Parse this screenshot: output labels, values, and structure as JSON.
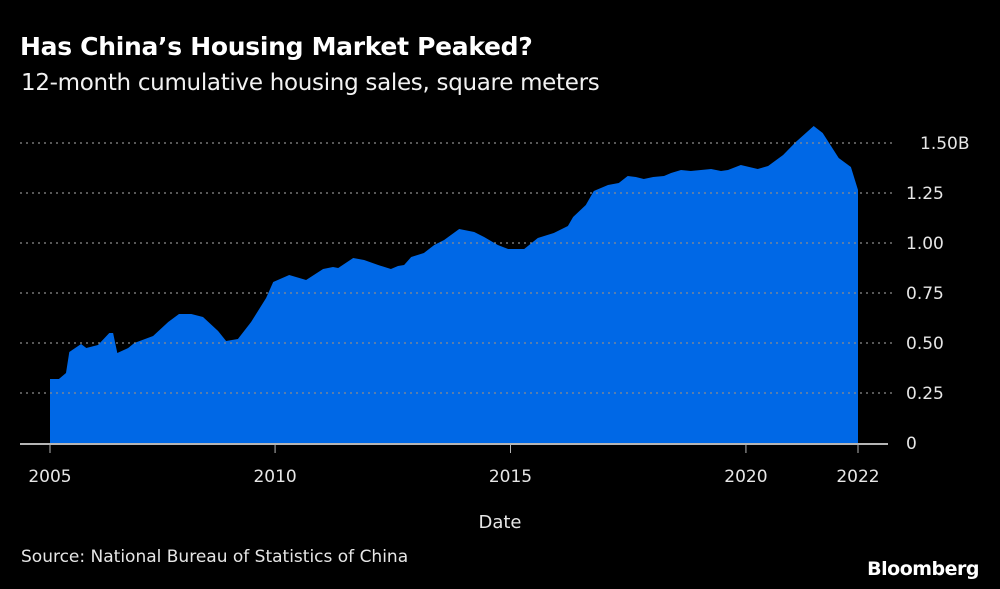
{
  "chart_data": {
    "type": "area",
    "title": "Has China’s Housing Market Peaked?",
    "subtitle": "12-month cumulative housing sales, square meters",
    "xlabel": "Date",
    "ylabel": "",
    "source": "Source: National Bureau of Statistics of China",
    "logo": "Bloomberg",
    "color": "#0068e6",
    "grid": true,
    "xlim": [
      2005.22,
      2022.38
    ],
    "ylim": [
      0,
      1.5
    ],
    "x_ticks": [
      {
        "value": 2005.22,
        "label": "2005"
      },
      {
        "value": 2010,
        "label": "2010"
      },
      {
        "value": 2015,
        "label": "2015"
      },
      {
        "value": 2020,
        "label": "2020"
      },
      {
        "value": 2022.38,
        "label": "2022"
      }
    ],
    "y_ticks": [
      {
        "value": 0,
        "label": "0"
      },
      {
        "value": 0.25,
        "label": "0.25"
      },
      {
        "value": 0.5,
        "label": "0.50"
      },
      {
        "value": 0.75,
        "label": "0.75"
      },
      {
        "value": 1.0,
        "label": "1.00"
      },
      {
        "value": 1.25,
        "label": "1.25"
      },
      {
        "value": 1.5,
        "label": "1.50B"
      }
    ],
    "points": [
      [
        2005.22,
        0.32
      ],
      [
        2005.41,
        0.32
      ],
      [
        2005.56,
        0.35
      ],
      [
        2005.63,
        0.455
      ],
      [
        2005.88,
        0.495
      ],
      [
        2005.99,
        0.475
      ],
      [
        2006.24,
        0.49
      ],
      [
        2006.48,
        0.55
      ],
      [
        2006.56,
        0.55
      ],
      [
        2006.65,
        0.45
      ],
      [
        2006.88,
        0.475
      ],
      [
        2007.01,
        0.5
      ],
      [
        2007.41,
        0.535
      ],
      [
        2007.73,
        0.605
      ],
      [
        2007.96,
        0.645
      ],
      [
        2008.22,
        0.645
      ],
      [
        2008.47,
        0.63
      ],
      [
        2008.79,
        0.56
      ],
      [
        2008.96,
        0.51
      ],
      [
        2009.21,
        0.52
      ],
      [
        2009.49,
        0.605
      ],
      [
        2009.81,
        0.725
      ],
      [
        2009.96,
        0.805
      ],
      [
        2010.3,
        0.84
      ],
      [
        2010.66,
        0.815
      ],
      [
        2011.02,
        0.87
      ],
      [
        2011.23,
        0.88
      ],
      [
        2011.34,
        0.875
      ],
      [
        2011.66,
        0.925
      ],
      [
        2011.89,
        0.915
      ],
      [
        2012.19,
        0.89
      ],
      [
        2012.46,
        0.87
      ],
      [
        2012.61,
        0.885
      ],
      [
        2012.74,
        0.89
      ],
      [
        2012.89,
        0.93
      ],
      [
        2013.16,
        0.95
      ],
      [
        2013.38,
        0.99
      ],
      [
        2013.59,
        1.015
      ],
      [
        2013.91,
        1.07
      ],
      [
        2014.23,
        1.055
      ],
      [
        2014.44,
        1.03
      ],
      [
        2014.73,
        0.99
      ],
      [
        2014.95,
        0.97
      ],
      [
        2015.29,
        0.97
      ],
      [
        2015.58,
        1.025
      ],
      [
        2015.92,
        1.05
      ],
      [
        2016.22,
        1.085
      ],
      [
        2016.33,
        1.13
      ],
      [
        2016.6,
        1.19
      ],
      [
        2016.77,
        1.26
      ],
      [
        2017.07,
        1.29
      ],
      [
        2017.3,
        1.3
      ],
      [
        2017.49,
        1.335
      ],
      [
        2017.66,
        1.33
      ],
      [
        2017.83,
        1.32
      ],
      [
        2018.03,
        1.33
      ],
      [
        2018.26,
        1.335
      ],
      [
        2018.41,
        1.35
      ],
      [
        2018.62,
        1.365
      ],
      [
        2018.83,
        1.36
      ],
      [
        2019.26,
        1.37
      ],
      [
        2019.47,
        1.36
      ],
      [
        2019.62,
        1.365
      ],
      [
        2019.89,
        1.39
      ],
      [
        2020.25,
        1.37
      ],
      [
        2020.47,
        1.385
      ],
      [
        2020.79,
        1.44
      ],
      [
        2021.06,
        1.505
      ],
      [
        2021.44,
        1.585
      ],
      [
        2021.63,
        1.55
      ],
      [
        2021.97,
        1.425
      ],
      [
        2022.23,
        1.38
      ],
      [
        2022.38,
        1.265
      ]
    ]
  }
}
